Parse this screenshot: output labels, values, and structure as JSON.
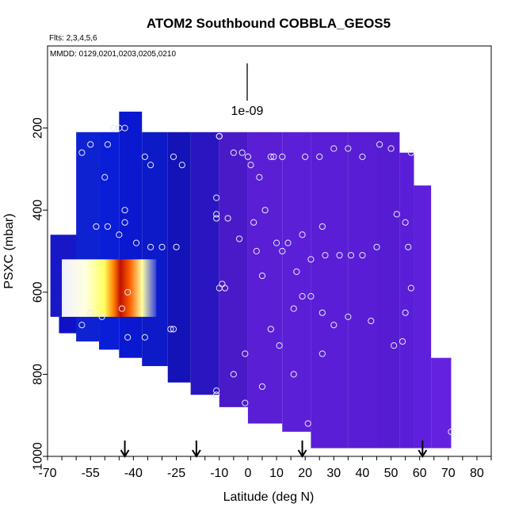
{
  "chart_data": {
    "type": "heatmap",
    "title": "ATOM2 Southbound COBBLA_GEOS5",
    "subtitle_flights": "Flts: 2,3,4,5,6",
    "subtitle_dates": "MMDD: 0129,0201,0203,0205,0210",
    "xlabel": "Latitude (deg N)",
    "ylabel": "PSXC (mbar)",
    "xlim": [
      -70,
      85
    ],
    "ylim": [
      1000,
      0
    ],
    "x_ticks": [
      "-70",
      "-55",
      "-40",
      "-25",
      "-10",
      "0",
      "10",
      "20",
      "30",
      "40",
      "50",
      "60",
      "70",
      "80"
    ],
    "x_tick_values": [
      -70,
      -55,
      -40,
      -25,
      -10,
      0,
      10,
      20,
      30,
      40,
      50,
      60,
      70,
      80
    ],
    "y_ticks": [
      "200",
      "400",
      "600",
      "800",
      "1000"
    ],
    "y_tick_values": [
      200,
      400,
      600,
      800,
      1000
    ],
    "scale_label": "1e-09",
    "arrow_latitudes": [
      -43,
      -18,
      19,
      61
    ],
    "columns": [
      {
        "lat0": -69,
        "lat1": -57,
        "p0": 460,
        "p1": 660,
        "c": "#1717c8"
      },
      {
        "lat0": -66,
        "lat1": -57,
        "p0": 660,
        "p1": 700,
        "c": "#1010c6"
      },
      {
        "lat0": -60,
        "lat1": -52,
        "p0": 210,
        "p1": 720,
        "c": "#0f22d2"
      },
      {
        "lat0": -52,
        "lat1": -45,
        "p0": 210,
        "p1": 740,
        "c": "#0a1ed8"
      },
      {
        "lat0": -45,
        "lat1": -37,
        "p0": 160,
        "p1": 760,
        "c": "#0a18d0"
      },
      {
        "lat0": -37,
        "lat1": -28,
        "p0": 210,
        "p1": 780,
        "c": "#0c1ac8"
      },
      {
        "lat0": -28,
        "lat1": -20,
        "p0": 210,
        "p1": 820,
        "c": "#1313b8"
      },
      {
        "lat0": -20,
        "lat1": -10,
        "p0": 210,
        "p1": 850,
        "c": "#2a16c0"
      },
      {
        "lat0": -10,
        "lat1": 0,
        "p0": 210,
        "p1": 880,
        "c": "#4a1ac8"
      },
      {
        "lat0": 0,
        "lat1": 12,
        "p0": 210,
        "p1": 920,
        "c": "#5a1fd4"
      },
      {
        "lat0": 12,
        "lat1": 22,
        "p0": 210,
        "p1": 940,
        "c": "#5c1fd8"
      },
      {
        "lat0": 22,
        "lat1": 35,
        "p0": 210,
        "p1": 980,
        "c": "#5a1ed6"
      },
      {
        "lat0": 35,
        "lat1": 45,
        "p0": 210,
        "p1": 980,
        "c": "#581dd4"
      },
      {
        "lat0": 45,
        "lat1": 53,
        "p0": 210,
        "p1": 980,
        "c": "#561cd2"
      },
      {
        "lat0": 53,
        "lat1": 58,
        "p0": 260,
        "p1": 980,
        "c": "#5a1ed8"
      },
      {
        "lat0": 58,
        "lat1": 64,
        "p0": 340,
        "p1": 980,
        "c": "#5e20dc"
      },
      {
        "lat0": 64,
        "lat1": 71,
        "p0": 760,
        "p1": 980,
        "c": "#6422e0"
      }
    ],
    "hotspot": {
      "lat0": -65,
      "lat1": -32,
      "p0": 520,
      "p1": 660,
      "stops": [
        [
          "#f0f0ff",
          0
        ],
        [
          "#ffffe0",
          0.25
        ],
        [
          "#ffff60",
          0.45
        ],
        [
          "#ff8000",
          0.55
        ],
        [
          "#c01000",
          0.62
        ],
        [
          "#ff6000",
          0.72
        ],
        [
          "#ffffa0",
          0.85
        ],
        [
          "#3040e0",
          1
        ]
      ]
    },
    "points": [
      [
        -47,
        200
      ],
      [
        -45,
        200
      ],
      [
        -43,
        200
      ],
      [
        -55,
        240
      ],
      [
        -49,
        240
      ],
      [
        -58,
        260
      ],
      [
        -36,
        270
      ],
      [
        -26,
        270
      ],
      [
        -34,
        290
      ],
      [
        -23,
        290
      ],
      [
        -50,
        320
      ],
      [
        -43,
        400
      ],
      [
        -43,
        430
      ],
      [
        -45,
        460
      ],
      [
        -53,
        440
      ],
      [
        -49,
        440
      ],
      [
        -39,
        480
      ],
      [
        -34,
        490
      ],
      [
        -30,
        490
      ],
      [
        -25,
        490
      ],
      [
        -42,
        600
      ],
      [
        -55,
        650
      ],
      [
        -58,
        680
      ],
      [
        -51,
        660
      ],
      [
        -44,
        640
      ],
      [
        -36,
        710
      ],
      [
        -42,
        710
      ],
      [
        -27,
        690
      ],
      [
        -26,
        690
      ],
      [
        -10,
        220
      ],
      [
        -10,
        220
      ],
      [
        -5,
        260
      ],
      [
        -2,
        260
      ],
      [
        0,
        270
      ],
      [
        1,
        290
      ],
      [
        4,
        320
      ],
      [
        8,
        270
      ],
      [
        9,
        270
      ],
      [
        12,
        270
      ],
      [
        20,
        270
      ],
      [
        25,
        270
      ],
      [
        30,
        250
      ],
      [
        35,
        250
      ],
      [
        40,
        270
      ],
      [
        46,
        240
      ],
      [
        50,
        250
      ],
      [
        57,
        260
      ],
      [
        -11,
        370
      ],
      [
        -11,
        410
      ],
      [
        -7,
        420
      ],
      [
        -11,
        420
      ],
      [
        -3,
        470
      ],
      [
        2,
        430
      ],
      [
        6,
        400
      ],
      [
        10,
        480
      ],
      [
        12,
        500
      ],
      [
        14,
        480
      ],
      [
        19,
        460
      ],
      [
        22,
        520
      ],
      [
        26,
        440
      ],
      [
        27,
        510
      ],
      [
        32,
        510
      ],
      [
        36,
        510
      ],
      [
        40,
        510
      ],
      [
        45,
        490
      ],
      [
        52,
        410
      ],
      [
        55,
        430
      ],
      [
        56,
        490
      ],
      [
        57,
        590
      ],
      [
        -10,
        590
      ],
      [
        -9,
        580
      ],
      [
        -8,
        590
      ],
      [
        5,
        560
      ],
      [
        3,
        500
      ],
      [
        17,
        550
      ],
      [
        19,
        610
      ],
      [
        22,
        610
      ],
      [
        16,
        640
      ],
      [
        26,
        650
      ],
      [
        30,
        680
      ],
      [
        35,
        660
      ],
      [
        43,
        670
      ],
      [
        51,
        730
      ],
      [
        54,
        720
      ],
      [
        55,
        650
      ],
      [
        -1,
        750
      ],
      [
        -11,
        840
      ],
      [
        -11,
        850
      ],
      [
        -5,
        800
      ],
      [
        5,
        830
      ],
      [
        16,
        800
      ],
      [
        26,
        750
      ],
      [
        -1,
        870
      ],
      [
        21,
        920
      ],
      [
        71,
        940
      ],
      [
        11,
        730
      ],
      [
        8,
        690
      ]
    ]
  }
}
